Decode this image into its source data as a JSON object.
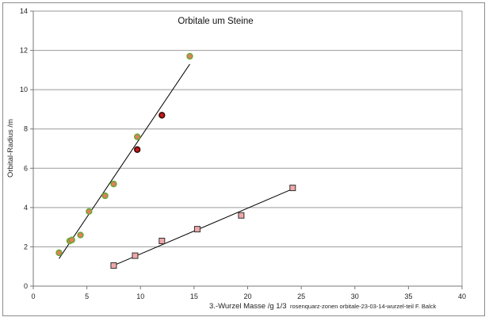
{
  "chart_data": {
    "type": "scatter",
    "title": "Orbitale um Steine",
    "xlabel": "3.-Wurzel Masse /g 1/3",
    "ylabel": "Orbital-Radius /m",
    "footnote": "rosenquarz-zonen  orbitale-23-03-14-wurzel-teil  F. Balck",
    "xlim": [
      0,
      40
    ],
    "ylim": [
      0,
      14
    ],
    "x_ticks": [
      0,
      5,
      10,
      15,
      20,
      25,
      30,
      35,
      40
    ],
    "y_ticks": [
      0,
      2,
      4,
      6,
      8,
      10,
      12,
      14
    ],
    "grid": "horizontal",
    "series": [
      {
        "marker": "circle",
        "fill": "#e87c60",
        "edge": "#6aa832",
        "x": [
          2.4,
          3.4,
          3.6,
          4.4,
          5.2,
          6.7,
          7.5,
          9.7,
          14.6
        ],
        "y": [
          1.7,
          2.3,
          2.35,
          2.6,
          3.8,
          4.6,
          5.2,
          7.6,
          11.7
        ]
      },
      {
        "marker": "circle",
        "fill": "#c81818",
        "edge": "#3a0a0a",
        "x": [
          9.7,
          12.0
        ],
        "y": [
          6.95,
          8.7
        ]
      },
      {
        "marker": "square",
        "fill": "#f0a8a8",
        "edge": "#303030",
        "x": [
          7.5,
          9.5,
          12.0,
          15.3,
          19.4,
          24.2
        ],
        "y": [
          1.05,
          1.55,
          2.3,
          2.9,
          3.6,
          5.0
        ]
      }
    ],
    "trendlines": [
      {
        "x": [
          2.4,
          14.6
        ],
        "y": [
          1.4,
          11.3
        ],
        "color": "#000000"
      },
      {
        "x": [
          7.5,
          24.2
        ],
        "y": [
          1.05,
          4.95
        ],
        "color": "#000000"
      }
    ]
  }
}
